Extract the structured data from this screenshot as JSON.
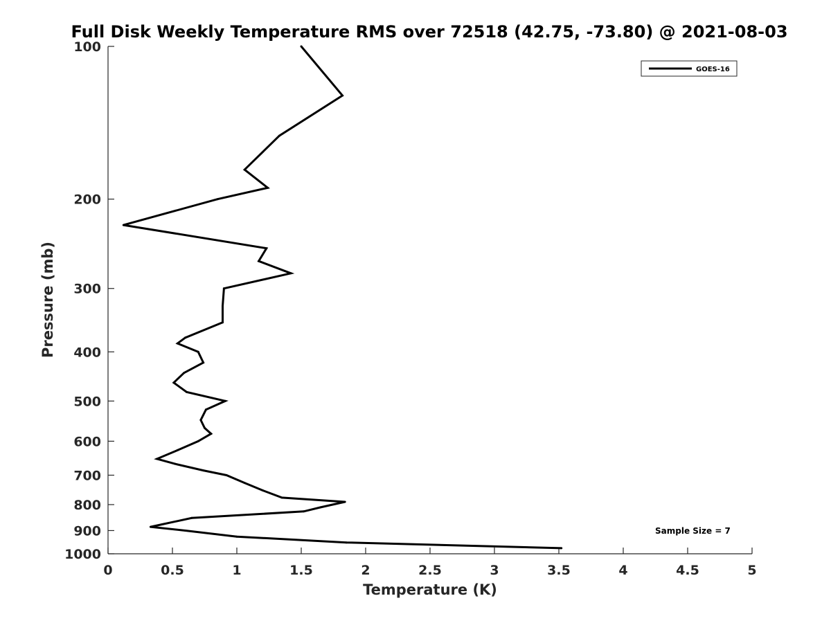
{
  "chart_data": {
    "type": "line",
    "title": "Full Disk Weekly Temperature RMS over 72518 (42.75, -73.80) @ 2021-08-03",
    "xlabel": "Temperature (K)",
    "ylabel": "Pressure (mb)",
    "xlim": [
      0,
      5
    ],
    "ylim": [
      100,
      1000
    ],
    "yscale": "log",
    "y_reversed": true,
    "grid": false,
    "legend_position": "top-right",
    "x_ticks": [
      0,
      0.5,
      1,
      1.5,
      2,
      2.5,
      3,
      3.5,
      4,
      4.5,
      5
    ],
    "x_tick_labels": [
      "0",
      "0.5",
      "1",
      "1.5",
      "2",
      "2.5",
      "3",
      "3.5",
      "4",
      "4.5",
      "5"
    ],
    "y_ticks": [
      100,
      200,
      300,
      400,
      500,
      600,
      700,
      800,
      900,
      1000
    ],
    "y_tick_labels": [
      "100",
      "200",
      "300",
      "400",
      "500",
      "600",
      "700",
      "800",
      "900",
      "1000"
    ],
    "series": [
      {
        "name": "GOES-16",
        "color": "#000000",
        "points": [
          [
            1.5,
            100
          ],
          [
            1.82,
            125
          ],
          [
            1.33,
            150
          ],
          [
            1.06,
            175
          ],
          [
            1.24,
            190
          ],
          [
            0.85,
            200
          ],
          [
            0.12,
            225
          ],
          [
            1.23,
            250
          ],
          [
            1.17,
            265
          ],
          [
            1.42,
            280
          ],
          [
            0.9,
            300
          ],
          [
            0.89,
            325
          ],
          [
            0.89,
            350
          ],
          [
            0.6,
            375
          ],
          [
            0.54,
            385
          ],
          [
            0.7,
            400
          ],
          [
            0.74,
            420
          ],
          [
            0.59,
            440
          ],
          [
            0.51,
            460
          ],
          [
            0.61,
            480
          ],
          [
            0.91,
            500
          ],
          [
            0.76,
            520
          ],
          [
            0.72,
            545
          ],
          [
            0.75,
            565
          ],
          [
            0.8,
            580
          ],
          [
            0.7,
            600
          ],
          [
            0.54,
            625
          ],
          [
            0.38,
            650
          ],
          [
            0.52,
            665
          ],
          [
            0.74,
            685
          ],
          [
            0.92,
            700
          ],
          [
            1.06,
            725
          ],
          [
            1.2,
            750
          ],
          [
            1.35,
            775
          ],
          [
            1.84,
            790
          ],
          [
            1.65,
            810
          ],
          [
            1.52,
            825
          ],
          [
            0.65,
            850
          ],
          [
            0.42,
            875
          ],
          [
            0.33,
            885
          ],
          [
            0.6,
            900
          ],
          [
            1.0,
            925
          ],
          [
            1.85,
            950
          ],
          [
            3.52,
            975
          ]
        ]
      }
    ],
    "annotations": [
      {
        "text": "Sample Size = 7",
        "position": "bottom-right"
      }
    ]
  }
}
